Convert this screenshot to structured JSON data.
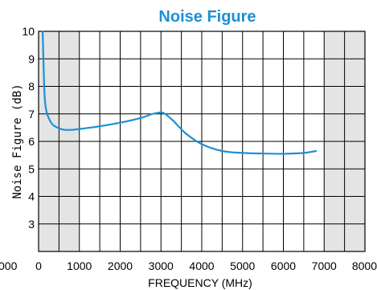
{
  "chart_data": {
    "type": "line",
    "title": "Noise Figure",
    "xlabel": "FREQUENCY (MHz)",
    "ylabel": "Noise Figure (dB)",
    "xlim": [
      0,
      8000
    ],
    "ylim": [
      2,
      10
    ],
    "x_ticks": [
      "0",
      "1000",
      "2000",
      "3000",
      "4000",
      "5000",
      "6000",
      "7000",
      "8000"
    ],
    "x_left_partial_label": "000",
    "y_ticks": [
      "3",
      "4",
      "5",
      "6",
      "7",
      "8",
      "9",
      "10"
    ],
    "grid": true,
    "x_grid_step": 500,
    "y_grid_step": 1,
    "shaded_x_ranges": [
      [
        0,
        1000
      ],
      [
        7000,
        8000
      ]
    ],
    "colors": {
      "line": "#1e8fd6",
      "title": "#1e8fd6",
      "shade": "#e4e4e4",
      "grid": "#000000"
    },
    "series": [
      {
        "x": [
          100,
          120,
          150,
          200,
          300,
          400,
          600,
          800,
          1000,
          1500,
          2000,
          2500,
          2800,
          3000,
          3100,
          3300,
          3600,
          4000,
          4500,
          5000,
          5500,
          6000,
          6500,
          6800
        ],
        "y": [
          10,
          8.9,
          7.6,
          7.05,
          6.7,
          6.55,
          6.43,
          6.42,
          6.45,
          6.55,
          6.68,
          6.85,
          7.0,
          7.05,
          7.0,
          6.75,
          6.3,
          5.9,
          5.65,
          5.58,
          5.56,
          5.55,
          5.58,
          5.65
        ]
      }
    ]
  }
}
